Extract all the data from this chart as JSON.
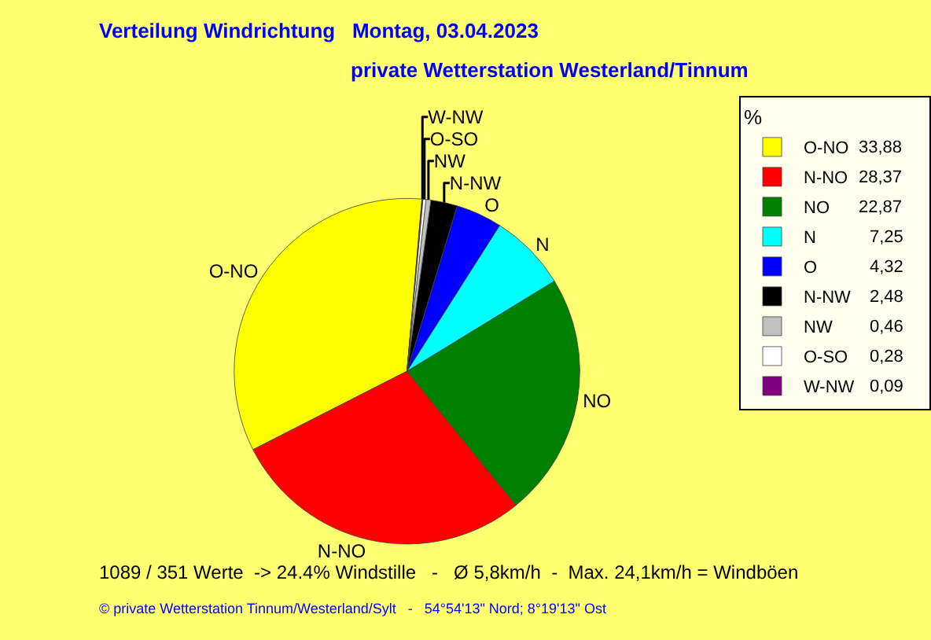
{
  "chart_data": {
    "type": "pie",
    "title": "Verteilung Windrichtung   Montag, 03.04.2023",
    "subtitle": "private Wetterstation Westerland/Tinnum",
    "categories": [
      "O-NO",
      "N-NO",
      "NO",
      "N",
      "O",
      "N-NW",
      "NW",
      "O-SO",
      "W-NW"
    ],
    "values": [
      33.88,
      28.37,
      22.87,
      7.25,
      4.32,
      2.48,
      0.46,
      0.28,
      0.09
    ],
    "value_labels": [
      "33,88",
      "28,37",
      "22,87",
      "7,25",
      "4,32",
      "2,48",
      "0,46",
      "0,28",
      "0,09"
    ],
    "colors": [
      "#ffff00",
      "#ff0000",
      "#008000",
      "#00ffff",
      "#0000ff",
      "#000000",
      "#c0c0c0",
      "#ffffff",
      "#800080"
    ],
    "legend": "top right",
    "legend_title": "%",
    "annotations": [
      "1089 / 351 Werte  -> 24.4% Windstille   -   Ø 5,8km/h  -  Max. 24,1km/h = Windböen",
      "© private Wetterstation Tinnum/Westerland/Sylt   -   54°54'13\" Nord; 8°19'13\" Ost"
    ]
  }
}
